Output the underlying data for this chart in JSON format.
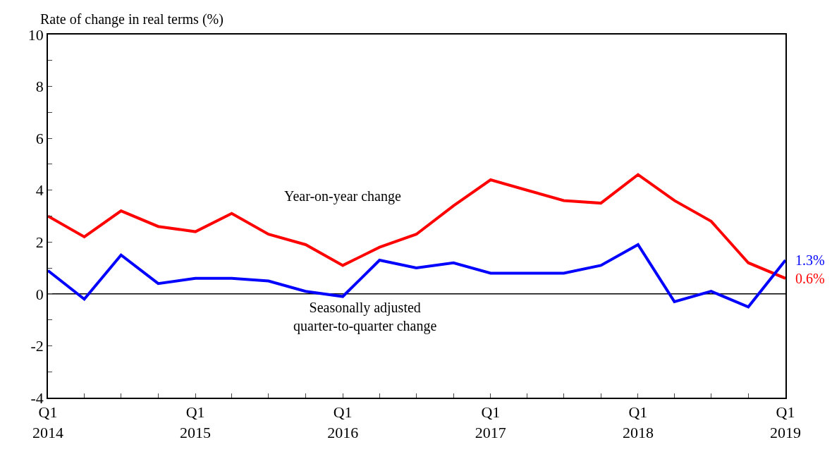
{
  "chart_data": {
    "type": "line",
    "ylabel": "Rate of change in real terms (%)",
    "x": [
      "2014-01",
      "2014-04",
      "2014-07",
      "2014-10",
      "2015-01",
      "2015-04",
      "2015-07",
      "2015-10",
      "2016-01",
      "2016-04",
      "2016-07",
      "2016-10",
      "2017-01",
      "2017-04",
      "2017-07",
      "2017-10",
      "2018-01",
      "2018-04",
      "2018-07",
      "2018-10",
      "2019-01"
    ],
    "series": [
      {
        "color": "#ff0000",
        "values": [
          3.0,
          2.2,
          3.2,
          2.6,
          2.4,
          3.1,
          2.3,
          1.9,
          1.1,
          1.8,
          2.3,
          3.4,
          4.4,
          4.0,
          3.6,
          3.5,
          4.6,
          3.6,
          2.8,
          1.2,
          0.6
        ],
        "value_labels": [
          null,
          null,
          null,
          null,
          null,
          null,
          null,
          null,
          null,
          null,
          null,
          null,
          null,
          null,
          null,
          null,
          null,
          null,
          null,
          null,
          "0.6%"
        ]
      },
      {
        "color": "#0000ff",
        "values": [
          0.9,
          -0.2,
          1.5,
          0.4,
          0.6,
          0.6,
          0.5,
          0.1,
          -0.1,
          1.3,
          1.0,
          1.2,
          0.8,
          0.8,
          0.8,
          1.1,
          1.9,
          -0.3,
          0.1,
          -0.5,
          1.3
        ],
        "value_labels": [
          null,
          null,
          null,
          null,
          null,
          null,
          null,
          null,
          null,
          null,
          null,
          null,
          null,
          null,
          null,
          null,
          null,
          null,
          null,
          null,
          "1.3%"
        ]
      }
    ],
    "annotations": [
      "Year-on-year change",
      "Seasonally adjusted\nquarter-to-quarter change"
    ],
    "ref_lines": [
      {
        "axis": "y",
        "value": 0,
        "color": "#000000"
      }
    ],
    "xlim": [
      "2014-01",
      "2019-01"
    ],
    "xticks": [
      {
        "value": "2014-01",
        "label": "Q1\n2014"
      },
      {
        "value": "2014-04",
        "label": null
      },
      {
        "value": "2014-07",
        "label": null
      },
      {
        "value": "2014-10",
        "label": null
      },
      {
        "value": "2015-01",
        "label": "Q1\n2015"
      },
      {
        "value": "2015-04",
        "label": null
      },
      {
        "value": "2015-07",
        "label": null
      },
      {
        "value": "2015-10",
        "label": null
      },
      {
        "value": "2016-01",
        "label": "Q1\n2016"
      },
      {
        "value": "2016-04",
        "label": null
      },
      {
        "value": "2016-07",
        "label": null
      },
      {
        "value": "2016-10",
        "label": null
      },
      {
        "value": "2017-01",
        "label": "Q1\n2017"
      },
      {
        "value": "2017-04",
        "label": null
      },
      {
        "value": "2017-07",
        "label": null
      },
      {
        "value": "2017-10",
        "label": null
      },
      {
        "value": "2018-01",
        "label": "Q1\n2018"
      },
      {
        "value": "2018-04",
        "label": null
      },
      {
        "value": "2018-07",
        "label": null
      },
      {
        "value": "2018-10",
        "label": null
      },
      {
        "value": "2019-01",
        "label": "Q1\n2019"
      }
    ],
    "ylim": [
      -4,
      10
    ],
    "yticks": [
      -4,
      {
        "value": -3,
        "label": null
      },
      -2,
      {
        "value": -1,
        "label": null
      },
      0,
      {
        "value": 1,
        "label": null
      },
      2,
      {
        "value": 3,
        "label": null
      },
      4,
      {
        "value": 5,
        "label": null
      },
      6,
      {
        "value": 7,
        "label": null
      },
      8,
      {
        "value": 9,
        "label": null
      },
      10
    ],
    "marker": "none",
    "line_style": "solid"
  }
}
